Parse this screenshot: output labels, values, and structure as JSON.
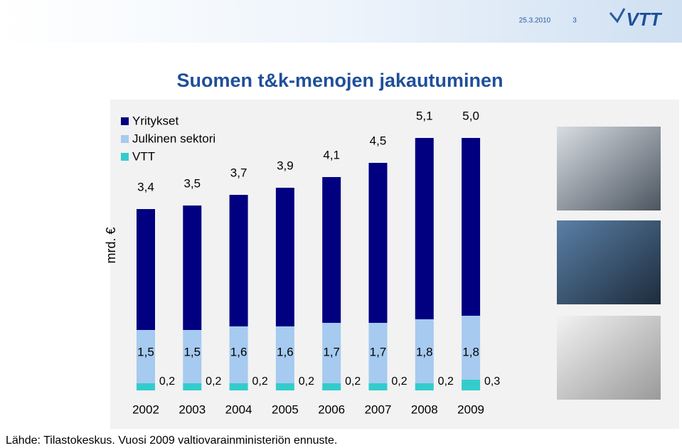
{
  "header": {
    "date": "25.3.2010",
    "page": "3",
    "logo": "VTT"
  },
  "chart_data": {
    "type": "stacked-bar",
    "title": "Suomen t&k-menojen jakautuminen",
    "y_label": "mrd. €",
    "categories": [
      "2002",
      "2003",
      "2004",
      "2005",
      "2006",
      "2007",
      "2008",
      "2009"
    ],
    "series": [
      {
        "name": "VTT",
        "color": "#33cccc",
        "values": [
          0.2,
          0.2,
          0.2,
          0.2,
          0.2,
          0.2,
          0.2,
          0.3
        ],
        "value_labels": [
          "0,2",
          "0,2",
          "0,2",
          "0,2",
          "0,2",
          "0,2",
          "0,2",
          "0,3"
        ]
      },
      {
        "name": "Julkinen sektori",
        "color": "#a6caf0",
        "values": [
          1.5,
          1.5,
          1.6,
          1.6,
          1.7,
          1.7,
          1.8,
          1.8
        ],
        "value_labels": [
          "1,5",
          "1,5",
          "1,6",
          "1,6",
          "1,7",
          "1,7",
          "1,8",
          "1,8"
        ]
      },
      {
        "name": "Yritykset",
        "color": "#000080",
        "values": [
          3.4,
          3.5,
          3.7,
          3.9,
          4.1,
          4.5,
          5.1,
          5.0
        ],
        "value_labels": [
          "3,4",
          "3,5",
          "3,7",
          "3,9",
          "4,1",
          "4,5",
          "5,1",
          "5,0"
        ]
      }
    ],
    "ylim": [
      0,
      8
    ]
  },
  "footer": {
    "source": "Lähde: Tilastokeskus. Vuosi 2009 valtiovarainministeriön ennuste."
  }
}
